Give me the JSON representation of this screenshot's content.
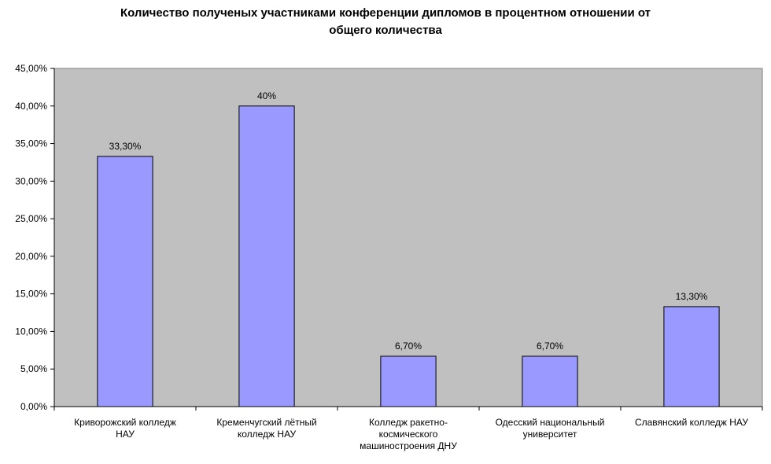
{
  "chart_data": {
    "type": "bar",
    "title_lines": [
      "Количество полученых участниками конференции дипломов в процентном отношении от",
      "общего количества"
    ],
    "xlabel": "",
    "ylabel": "",
    "categories": [
      [
        "Криворожский колледж",
        "НАУ"
      ],
      [
        "Кременчугский лётный",
        "колледж НАУ"
      ],
      [
        "Колледж ракетно-",
        "космического",
        "машиностроения ДНУ"
      ],
      [
        "Одесский национальный",
        "университет"
      ],
      [
        "Славянский колледж НАУ"
      ]
    ],
    "values": [
      0.333,
      0.4,
      0.067,
      0.067,
      0.133
    ],
    "data_labels": [
      "33,30%",
      "40%",
      "6,70%",
      "6,70%",
      "13,30%"
    ],
    "ylim": [
      0,
      0.45
    ],
    "y_ticks": [
      0,
      0.05,
      0.1,
      0.15,
      0.2,
      0.25,
      0.3,
      0.35,
      0.4,
      0.45
    ],
    "y_tick_labels": [
      "0,00%",
      "5,00%",
      "10,00%",
      "15,00%",
      "20,00%",
      "25,00%",
      "30,00%",
      "35,00%",
      "40,00%",
      "45,00%"
    ],
    "grid": false,
    "legend": "none",
    "colors": {
      "plot_background": "#c0c0c0",
      "bar_fill": "#9999ff",
      "bar_stroke": "#000000",
      "axis": "#000000"
    }
  }
}
